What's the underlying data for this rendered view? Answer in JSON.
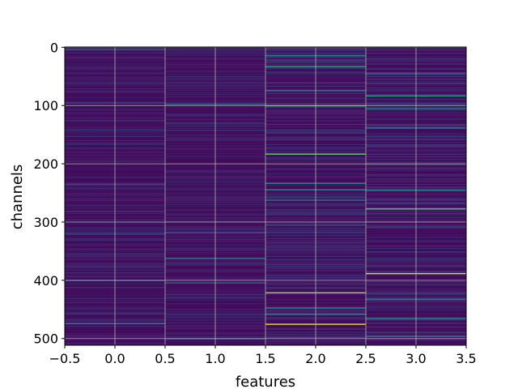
{
  "chart_data": {
    "type": "heatmap",
    "title": "",
    "xlabel": "features",
    "ylabel": "channels",
    "xlim": [
      -0.5,
      3.5
    ],
    "ylim": [
      511.5,
      -0.5
    ],
    "y_inverted": true,
    "grid": true,
    "colormap": "viridis",
    "n_rows": 512,
    "n_cols": 4,
    "xticks": [
      "−0.5",
      "0.0",
      "0.5",
      "1.0",
      "1.5",
      "2.0",
      "2.5",
      "3.0",
      "3.5"
    ],
    "xtick_values": [
      -0.5,
      0.0,
      0.5,
      1.0,
      1.5,
      2.0,
      2.5,
      3.0,
      3.5
    ],
    "yticks": [
      "0",
      "100",
      "200",
      "300",
      "400",
      "500"
    ],
    "ytick_values": [
      0,
      100,
      200,
      300,
      400,
      500
    ],
    "highlights": [
      {
        "feature": 0,
        "channel": 3,
        "value": 0.25
      },
      {
        "feature": 0,
        "channel": 95,
        "value": 0.2
      },
      {
        "feature": 0,
        "channel": 235,
        "value": 0.22
      },
      {
        "feature": 0,
        "channel": 320,
        "value": 0.2
      },
      {
        "feature": 0,
        "channel": 400,
        "value": 0.25
      },
      {
        "feature": 0,
        "channel": 474,
        "value": 0.42
      },
      {
        "feature": 1,
        "channel": 97,
        "value": 0.3
      },
      {
        "feature": 1,
        "channel": 318,
        "value": 0.25
      },
      {
        "feature": 1,
        "channel": 362,
        "value": 0.4
      },
      {
        "feature": 1,
        "channel": 404,
        "value": 0.3
      },
      {
        "feature": 1,
        "channel": 500,
        "value": 0.3
      },
      {
        "feature": 2,
        "channel": 14,
        "value": 0.45
      },
      {
        "feature": 2,
        "channel": 33,
        "value": 0.55
      },
      {
        "feature": 2,
        "channel": 74,
        "value": 0.45
      },
      {
        "feature": 2,
        "channel": 100,
        "value": 0.7
      },
      {
        "feature": 2,
        "channel": 183,
        "value": 0.75
      },
      {
        "feature": 2,
        "channel": 233,
        "value": 0.5
      },
      {
        "feature": 2,
        "channel": 244,
        "value": 0.45
      },
      {
        "feature": 2,
        "channel": 262,
        "value": 0.4
      },
      {
        "feature": 2,
        "channel": 421,
        "value": 0.85
      },
      {
        "feature": 2,
        "channel": 447,
        "value": 0.5
      },
      {
        "feature": 2,
        "channel": 458,
        "value": 0.45
      },
      {
        "feature": 2,
        "channel": 475,
        "value": 0.95
      },
      {
        "feature": 3,
        "channel": 45,
        "value": 0.4
      },
      {
        "feature": 3,
        "channel": 83,
        "value": 0.55
      },
      {
        "feature": 3,
        "channel": 105,
        "value": 0.45
      },
      {
        "feature": 3,
        "channel": 138,
        "value": 0.4
      },
      {
        "feature": 3,
        "channel": 245,
        "value": 0.45
      },
      {
        "feature": 3,
        "channel": 277,
        "value": 0.72
      },
      {
        "feature": 3,
        "channel": 388,
        "value": 0.92
      },
      {
        "feature": 3,
        "channel": 432,
        "value": 0.4
      },
      {
        "feature": 3,
        "channel": 465,
        "value": 0.45
      },
      {
        "feature": 3,
        "channel": 496,
        "value": 0.4
      }
    ]
  }
}
